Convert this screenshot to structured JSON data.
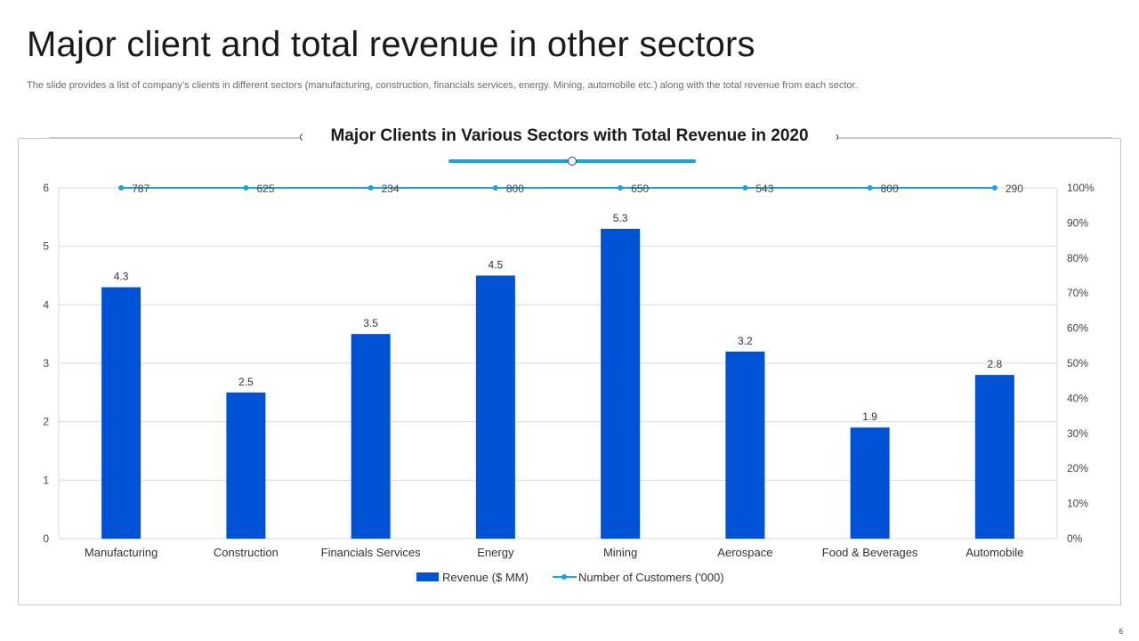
{
  "slide": {
    "title": "Major client and total revenue in other sectors",
    "subtitle": "The slide provides a list of company’s clients in different sectors (manufacturing, construction, financials services, energy. Mining, automobile etc.) along with the total revenue from each sector.",
    "page_number": "6"
  },
  "colors": {
    "bar": "#0052d4",
    "line": "#1aa3d3",
    "accent": "#1aa3d3",
    "grid": "#d9d9d9"
  },
  "chart_data": {
    "type": "bar",
    "title": "Major Clients in Various Sectors with Total Revenue in 2020",
    "categories": [
      "Manufacturing",
      "Construction",
      "Financials Services",
      "Energy",
      "Mining",
      "Aerospace",
      "Food & Beverages",
      "Automobile"
    ],
    "series": [
      {
        "name": "Revenue ($ MM)",
        "type": "bar",
        "axis": "left",
        "values": [
          4.3,
          2.5,
          3.5,
          4.5,
          5.3,
          3.2,
          1.9,
          2.8
        ]
      },
      {
        "name": "Number of Customers ('000)",
        "type": "line",
        "axis": "right",
        "values": [
          787,
          625,
          234,
          800,
          650,
          543,
          800,
          290
        ],
        "plotted_at_percent": 100
      }
    ],
    "y_left": {
      "min": 0,
      "max": 6,
      "ticks": [
        "0",
        "1",
        "2",
        "3",
        "4",
        "5",
        "6"
      ]
    },
    "y_right": {
      "min": 0,
      "max": 100,
      "ticks": [
        "0%",
        "10%",
        "20%",
        "30%",
        "40%",
        "50%",
        "60%",
        "70%",
        "80%",
        "90%",
        "100%"
      ]
    },
    "grid": true,
    "legend_position": "bottom-center"
  }
}
